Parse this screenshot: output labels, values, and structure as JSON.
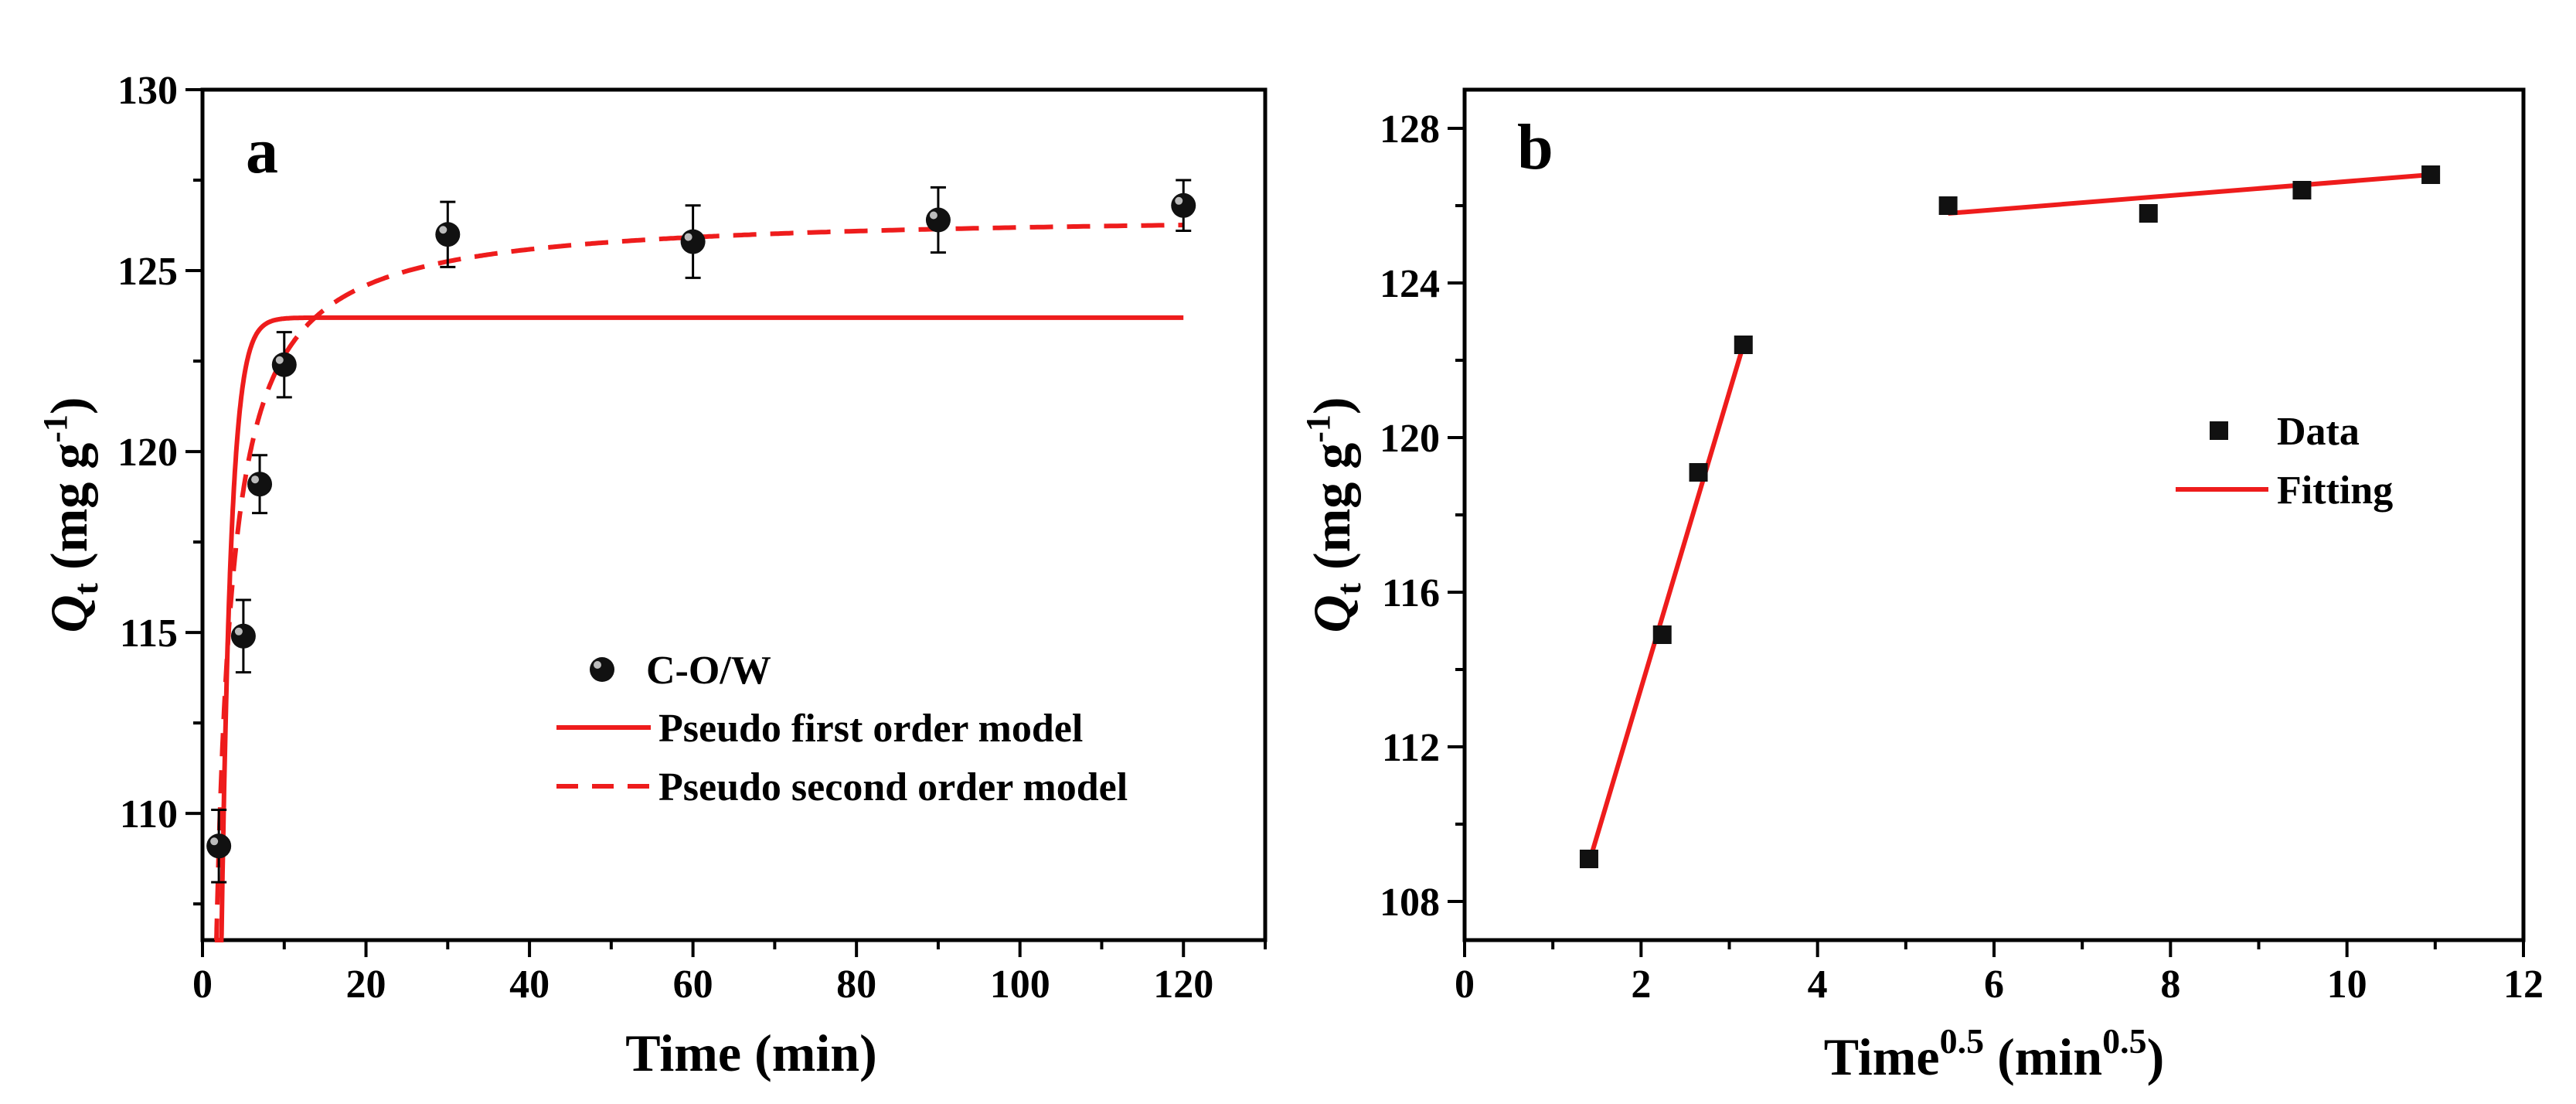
{
  "chart_data": [
    {
      "type": "scatter",
      "panel_label": "a",
      "xlabel": "Time (min)",
      "ylabel_main": "Q",
      "ylabel_sub": "t",
      "ylabel_unit": " (mg g",
      "ylabel_sup": "-1",
      "ylabel_close": ")",
      "xlim": [
        0,
        130
      ],
      "ylim": [
        106.5,
        130
      ],
      "xticks": [
        0,
        20,
        40,
        60,
        80,
        100,
        120
      ],
      "yticks": [
        110,
        115,
        120,
        125,
        130
      ],
      "legend_position": "lower-right",
      "series": [
        {
          "name": "C-O/W",
          "kind": "points",
          "x": [
            2,
            5,
            7,
            10,
            30,
            60,
            90,
            120
          ],
          "y": [
            109.1,
            114.9,
            119.1,
            122.4,
            126.0,
            125.8,
            126.4,
            126.8
          ],
          "err": [
            1.0,
            1.0,
            0.8,
            0.9,
            0.9,
            1.0,
            0.9,
            0.7
          ]
        },
        {
          "name": "Pseudo first order model",
          "kind": "solid",
          "model": "pfo",
          "qe": 123.7,
          "k": 0.85,
          "x_range": [
            1.5,
            120
          ]
        },
        {
          "name": "Pseudo second order model",
          "kind": "dashed",
          "model": "pso",
          "qe": 126.6,
          "k": 0.0245,
          "x_range": [
            1.5,
            120
          ]
        }
      ],
      "color": "#ee1c1c"
    },
    {
      "type": "scatter",
      "panel_label": "b",
      "xlabel_base": "Time",
      "xlabel_sup": "0.5",
      "xlabel_unit": " (min",
      "xlabel_unit_sup": "0.5",
      "xlabel_close": ")",
      "ylabel_main": "Q",
      "ylabel_sub": "t",
      "ylabel_unit": " (mg g",
      "ylabel_sup": "-1",
      "ylabel_close": ")",
      "xlim": [
        0,
        12
      ],
      "ylim": [
        107,
        129
      ],
      "xticks": [
        0,
        2,
        4,
        6,
        8,
        10,
        12
      ],
      "yticks": [
        108,
        112,
        116,
        120,
        124,
        128
      ],
      "legend_position": "right",
      "series": [
        {
          "name": "Data",
          "kind": "points",
          "x": [
            1.41,
            2.24,
            2.65,
            3.16,
            5.48,
            7.75,
            9.49,
            10.95
          ],
          "y": [
            109.1,
            114.9,
            119.1,
            122.4,
            126.0,
            125.8,
            126.4,
            126.8
          ]
        },
        {
          "name": "Fitting",
          "kind": "lines",
          "segments": [
            {
              "x": [
                1.41,
                3.16
              ],
              "y": [
                109.0,
                122.4
              ]
            },
            {
              "x": [
                5.48,
                10.95
              ],
              "y": [
                125.8,
                126.8
              ]
            }
          ]
        }
      ],
      "color": "#ee1c1c"
    }
  ]
}
